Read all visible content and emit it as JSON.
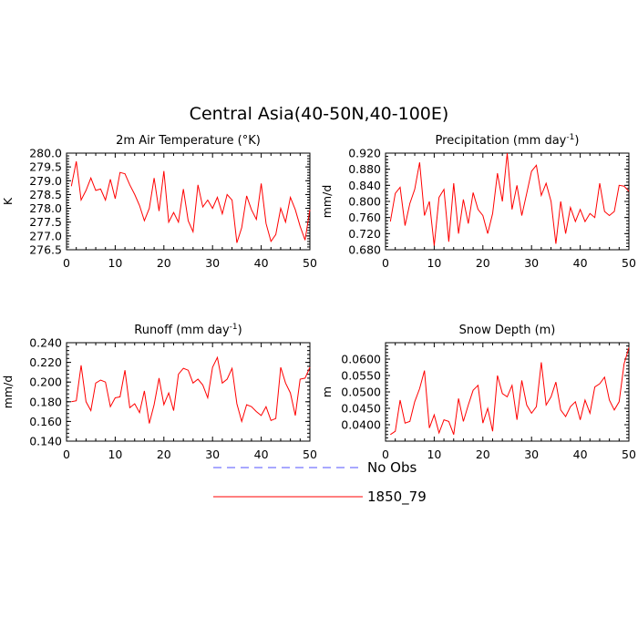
{
  "title": "Central Asia(40-50N,40-100E)",
  "legend": [
    {
      "label": "No Obs",
      "color": "#5050ff",
      "dash": true
    },
    {
      "label": "1850_79",
      "color": "#ff0000",
      "dash": false
    }
  ],
  "chart_data": [
    {
      "type": "line",
      "title": "2m Air Temperature (°K)",
      "ylabel": "K",
      "xlim": [
        0,
        50
      ],
      "ylim": [
        276.5,
        280.0
      ],
      "xticks": [
        "0",
        "10",
        "20",
        "30",
        "40",
        "50"
      ],
      "yticks": [
        "280.0",
        "279.5",
        "279.0",
        "278.5",
        "278.0",
        "277.5",
        "277.0",
        "276.5"
      ],
      "series": [
        {
          "name": "1850_79",
          "color": "#ff0000",
          "x": [
            1,
            2,
            3,
            4,
            5,
            6,
            7,
            8,
            9,
            10,
            11,
            12,
            13,
            14,
            15,
            16,
            17,
            18,
            19,
            20,
            21,
            22,
            23,
            24,
            25,
            26,
            27,
            28,
            29,
            30,
            31,
            32,
            33,
            34,
            35,
            36,
            37,
            38,
            39,
            40,
            41,
            42,
            43,
            44,
            45,
            46,
            47,
            48,
            49,
            50
          ],
          "y": [
            278.8,
            279.7,
            278.3,
            278.65,
            279.1,
            278.65,
            278.7,
            278.3,
            279.05,
            278.35,
            279.3,
            279.25,
            278.85,
            278.5,
            278.1,
            277.55,
            278.0,
            279.1,
            277.9,
            279.35,
            277.5,
            277.85,
            277.5,
            278.7,
            277.55,
            277.15,
            278.85,
            278.05,
            278.3,
            278.0,
            278.4,
            277.8,
            278.5,
            278.3,
            276.75,
            277.3,
            278.45,
            277.95,
            277.6,
            278.9,
            277.45,
            276.8,
            277.05,
            278.0,
            277.5,
            278.4,
            277.95,
            277.35,
            276.85,
            277.95
          ]
        }
      ]
    },
    {
      "type": "line",
      "title": "Precipitation (mm day-1)",
      "ylabel": "mm/d",
      "xlim": [
        0,
        50
      ],
      "ylim": [
        0.68,
        0.92
      ],
      "xticks": [
        "0",
        "10",
        "20",
        "30",
        "40",
        "50"
      ],
      "yticks": [
        "0.920",
        "0.880",
        "0.840",
        "0.800",
        "0.760",
        "0.720",
        "0.680"
      ],
      "series": [
        {
          "name": "1850_79",
          "color": "#ff0000",
          "x": [
            1,
            2,
            3,
            4,
            5,
            6,
            7,
            8,
            9,
            10,
            11,
            12,
            13,
            14,
            15,
            16,
            17,
            18,
            19,
            20,
            21,
            22,
            23,
            24,
            25,
            26,
            27,
            28,
            29,
            30,
            31,
            32,
            33,
            34,
            35,
            36,
            37,
            38,
            39,
            40,
            41,
            42,
            43,
            44,
            45,
            46,
            47,
            48,
            49,
            50
          ],
          "y": [
            0.75,
            0.82,
            0.835,
            0.74,
            0.795,
            0.83,
            0.897,
            0.765,
            0.8,
            0.69,
            0.81,
            0.83,
            0.7,
            0.845,
            0.72,
            0.805,
            0.745,
            0.822,
            0.78,
            0.765,
            0.72,
            0.77,
            0.87,
            0.8,
            0.925,
            0.78,
            0.84,
            0.765,
            0.82,
            0.875,
            0.89,
            0.815,
            0.845,
            0.8,
            0.695,
            0.8,
            0.72,
            0.785,
            0.75,
            0.78,
            0.75,
            0.77,
            0.76,
            0.845,
            0.775,
            0.765,
            0.775,
            0.84,
            0.838,
            0.825
          ]
        }
      ]
    },
    {
      "type": "line",
      "title": "Runoff (mm day-1)",
      "ylabel": "mm/d",
      "xlim": [
        0,
        50
      ],
      "ylim": [
        0.14,
        0.24
      ],
      "xticks": [
        "0",
        "10",
        "20",
        "30",
        "40",
        "50"
      ],
      "yticks": [
        "0.240",
        "0.220",
        "0.200",
        "0.180",
        "0.160",
        "0.140"
      ],
      "series": [
        {
          "name": "1850_79",
          "color": "#ff0000",
          "x": [
            1,
            2,
            3,
            4,
            5,
            6,
            7,
            8,
            9,
            10,
            11,
            12,
            13,
            14,
            15,
            16,
            17,
            18,
            19,
            20,
            21,
            22,
            23,
            24,
            25,
            26,
            27,
            28,
            29,
            30,
            31,
            32,
            33,
            34,
            35,
            36,
            37,
            38,
            39,
            40,
            41,
            42,
            43,
            44,
            45,
            46,
            47,
            48,
            49,
            50
          ],
          "y": [
            0.18,
            0.181,
            0.217,
            0.18,
            0.171,
            0.199,
            0.202,
            0.2,
            0.175,
            0.184,
            0.185,
            0.212,
            0.174,
            0.178,
            0.169,
            0.191,
            0.158,
            0.177,
            0.204,
            0.177,
            0.189,
            0.171,
            0.208,
            0.214,
            0.212,
            0.199,
            0.203,
            0.197,
            0.184,
            0.215,
            0.225,
            0.199,
            0.203,
            0.214,
            0.178,
            0.16,
            0.177,
            0.175,
            0.17,
            0.166,
            0.175,
            0.161,
            0.163,
            0.215,
            0.199,
            0.189,
            0.166,
            0.203,
            0.204,
            0.215
          ]
        }
      ]
    },
    {
      "type": "line",
      "title": "Snow Depth (m)",
      "ylabel": "m",
      "xlim": [
        0,
        50
      ],
      "ylim": [
        0.035,
        0.065
      ],
      "xticks": [
        "0",
        "10",
        "20",
        "30",
        "40",
        "50"
      ],
      "yticks": [
        "0.0600",
        "0.0550",
        "0.0500",
        "0.0450",
        "0.0400"
      ],
      "series": [
        {
          "name": "1850_79",
          "color": "#ff0000",
          "x": [
            1,
            2,
            3,
            4,
            5,
            6,
            7,
            8,
            9,
            10,
            11,
            12,
            13,
            14,
            15,
            16,
            17,
            18,
            19,
            20,
            21,
            22,
            23,
            24,
            25,
            26,
            27,
            28,
            29,
            30,
            31,
            32,
            33,
            34,
            35,
            36,
            37,
            38,
            39,
            40,
            41,
            42,
            43,
            44,
            45,
            46,
            47,
            48,
            49,
            50
          ],
          "y": [
            0.037,
            0.038,
            0.0475,
            0.0405,
            0.041,
            0.047,
            0.051,
            0.0565,
            0.039,
            0.043,
            0.0375,
            0.0415,
            0.041,
            0.037,
            0.048,
            0.041,
            0.046,
            0.0505,
            0.052,
            0.0405,
            0.045,
            0.038,
            0.055,
            0.0495,
            0.0485,
            0.052,
            0.0415,
            0.0535,
            0.046,
            0.0435,
            0.0455,
            0.059,
            0.046,
            0.0485,
            0.053,
            0.0445,
            0.0425,
            0.0455,
            0.047,
            0.0415,
            0.0475,
            0.0435,
            0.0515,
            0.0525,
            0.0545,
            0.0475,
            0.0445,
            0.047,
            0.0585,
            0.0635
          ]
        }
      ]
    }
  ]
}
